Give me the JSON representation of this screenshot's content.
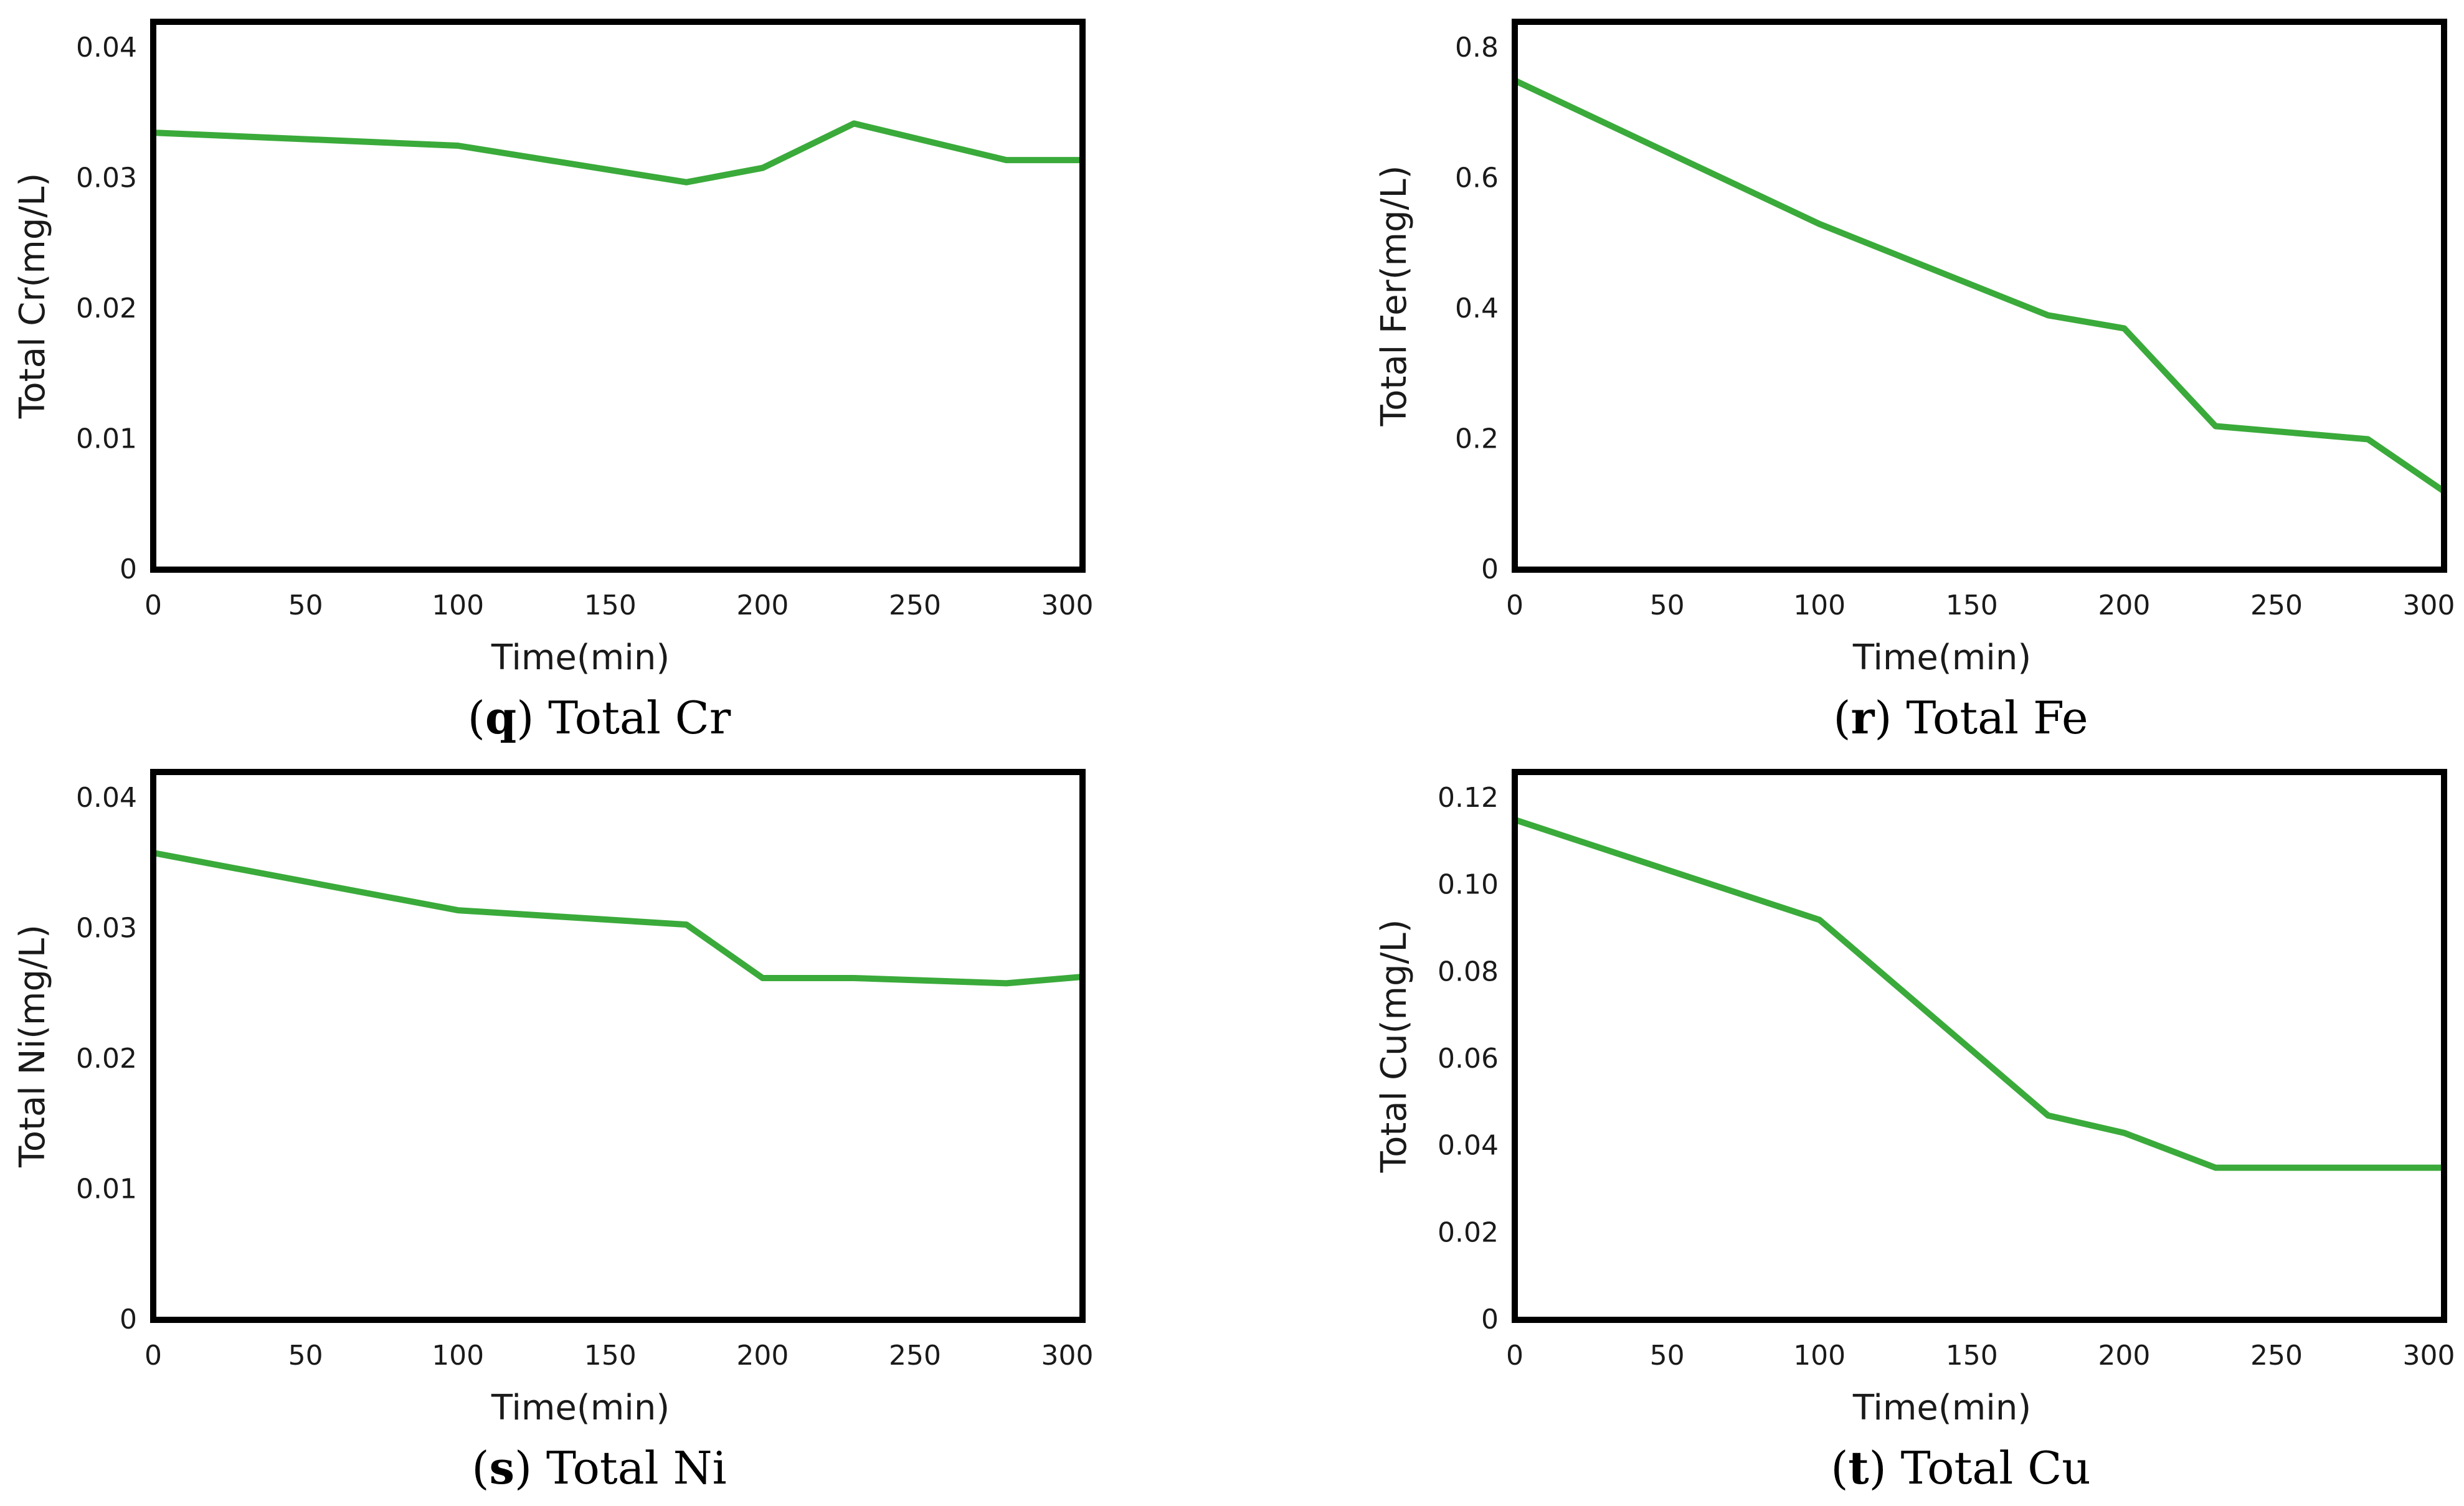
{
  "line_color": "#3aaa3a",
  "chart_data": [
    {
      "type": "line",
      "caption_letter": "q",
      "caption_text": "Total Cr",
      "xlabel": "Time(min)",
      "ylabel": "Total Cr(mg/L)",
      "xlim": [
        0,
        305
      ],
      "ylim": [
        0,
        0.042
      ],
      "xticks": [
        0,
        50,
        100,
        150,
        200,
        250,
        300
      ],
      "xtick_labels": [
        "0",
        "50",
        "100",
        "150",
        "200",
        "250",
        "300"
      ],
      "yticks": [
        0,
        0.01,
        0.02,
        0.03,
        0.04
      ],
      "ytick_labels": [
        "0",
        "0.01",
        "0.02",
        "0.03",
        "0.04"
      ],
      "series": [
        {
          "name": "Total Cr",
          "x": [
            0,
            100,
            175,
            200,
            230,
            280,
            305
          ],
          "y": [
            0.0335,
            0.0325,
            0.0297,
            0.0308,
            0.0342,
            0.0314,
            0.0314
          ]
        }
      ]
    },
    {
      "type": "line",
      "caption_letter": "r",
      "caption_text": "Total Fe",
      "xlabel": "Time(min)",
      "ylabel": "Total Fer(mg/L)",
      "xlim": [
        0,
        305
      ],
      "ylim": [
        0,
        0.84
      ],
      "xticks": [
        0,
        50,
        100,
        150,
        200,
        250,
        300
      ],
      "xtick_labels": [
        "0",
        "50",
        "100",
        "150",
        "200",
        "250",
        "300"
      ],
      "yticks": [
        0,
        0.2,
        0.4,
        0.6,
        0.8
      ],
      "ytick_labels": [
        "0",
        "0.2",
        "0.4",
        "0.6",
        "0.8"
      ],
      "series": [
        {
          "name": "Total Fe",
          "x": [
            0,
            100,
            175,
            200,
            230,
            280,
            305
          ],
          "y": [
            0.75,
            0.53,
            0.39,
            0.37,
            0.22,
            0.2,
            0.12
          ]
        }
      ]
    },
    {
      "type": "line",
      "caption_letter": "s",
      "caption_text": "Total Ni",
      "xlabel": "Time(min)",
      "ylabel": "Total Ni(mg/L)",
      "xlim": [
        0,
        305
      ],
      "ylim": [
        0,
        0.042
      ],
      "xticks": [
        0,
        50,
        100,
        150,
        200,
        250,
        300
      ],
      "xtick_labels": [
        "0",
        "50",
        "100",
        "150",
        "200",
        "250",
        "300"
      ],
      "yticks": [
        0,
        0.01,
        0.02,
        0.03,
        0.04
      ],
      "ytick_labels": [
        "0",
        "0.01",
        "0.02",
        "0.03",
        "0.04"
      ],
      "series": [
        {
          "name": "Total Ni",
          "x": [
            0,
            100,
            175,
            200,
            230,
            280,
            305
          ],
          "y": [
            0.0358,
            0.0314,
            0.0303,
            0.0262,
            0.0262,
            0.0258,
            0.0263
          ]
        }
      ]
    },
    {
      "type": "line",
      "caption_letter": "t",
      "caption_text": "Total Cu",
      "xlabel": "Time(min)",
      "ylabel": "Total Cu(mg/L)",
      "xlim": [
        0,
        305
      ],
      "ylim": [
        0,
        0.126
      ],
      "xticks": [
        0,
        50,
        100,
        150,
        200,
        250,
        300
      ],
      "xtick_labels": [
        "0",
        "50",
        "100",
        "150",
        "200",
        "250",
        "300"
      ],
      "yticks": [
        0,
        0.02,
        0.04,
        0.06,
        0.08,
        0.1,
        0.12
      ],
      "ytick_labels": [
        "0",
        "0.02",
        "0.04",
        "0.06",
        "0.08",
        "0.10",
        "0.12"
      ],
      "series": [
        {
          "name": "Total Cu",
          "x": [
            0,
            100,
            175,
            200,
            230,
            280,
            305
          ],
          "y": [
            0.115,
            0.092,
            0.047,
            0.043,
            0.035,
            0.035,
            0.035
          ]
        }
      ]
    }
  ]
}
